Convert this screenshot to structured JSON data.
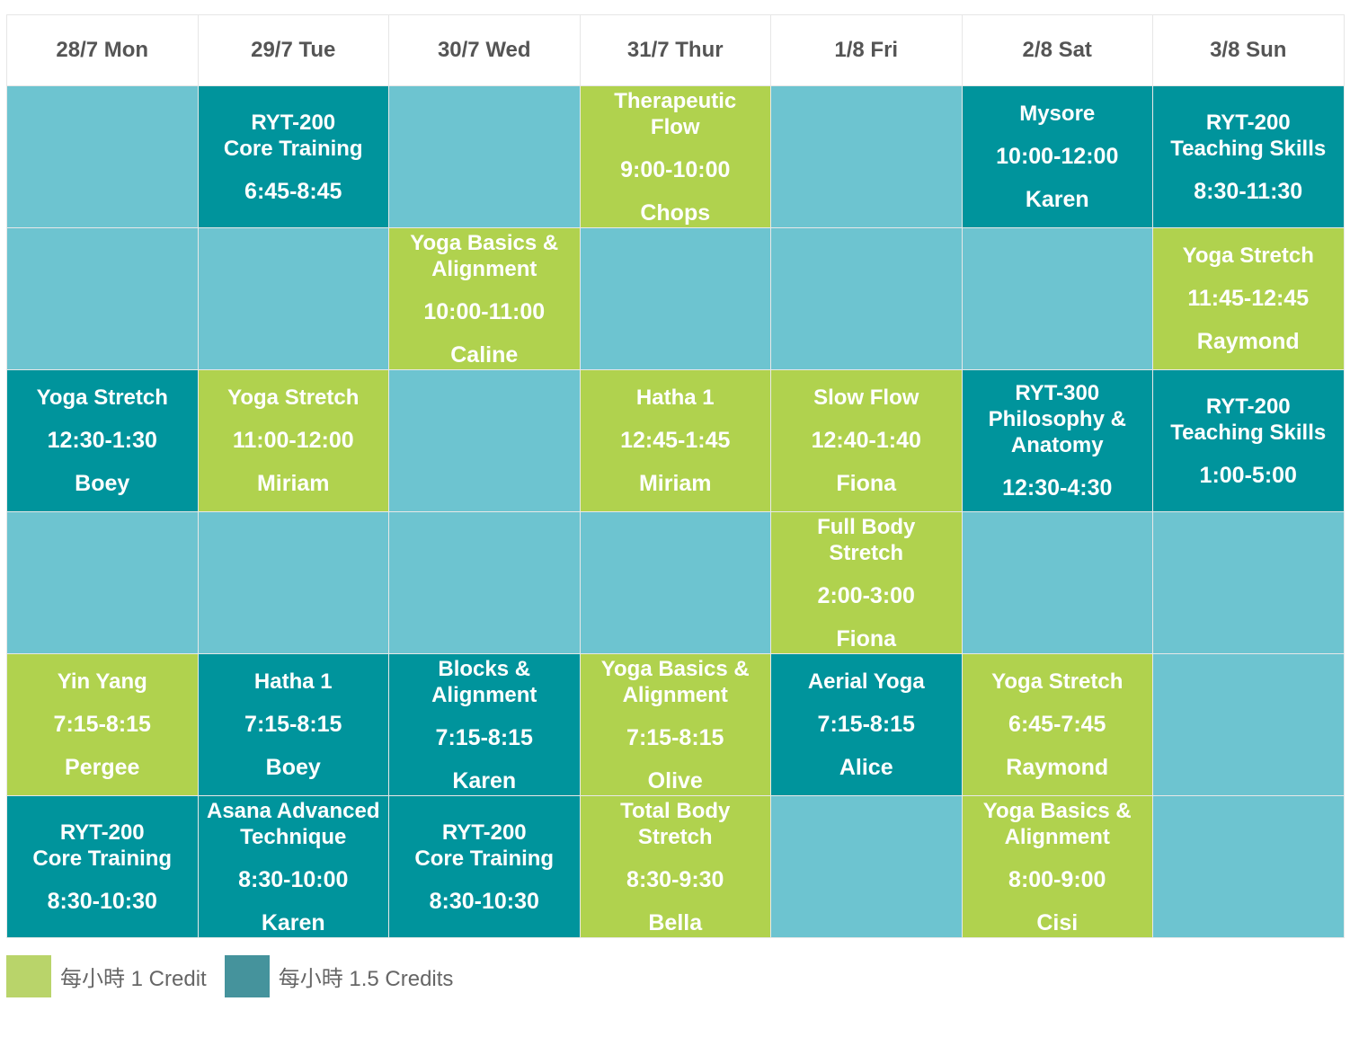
{
  "colors": {
    "empty": "#6dc4d0",
    "credit_1": "#b0d24e",
    "credit_1_5": "#00949c",
    "legend_1": "#b9d46a",
    "legend_1_5": "#45939c"
  },
  "days": [
    "28/7 Mon",
    "29/7 Tue",
    "30/7 Wed",
    "31/7 Thur",
    "1/8 Fri",
    "2/8 Sat",
    "3/8 Sun"
  ],
  "rows": [
    [
      null,
      {
        "type": "c15",
        "title": [
          "RYT-200",
          "Core Training"
        ],
        "time": "6:45-8:45",
        "teacher": ""
      },
      null,
      {
        "type": "c1",
        "title": [
          "Therapeutic",
          "Flow"
        ],
        "time": "9:00-10:00",
        "teacher": "Chops"
      },
      null,
      {
        "type": "c15",
        "title": [
          "Mysore"
        ],
        "time": "10:00-12:00",
        "teacher": "Karen"
      },
      {
        "type": "c15",
        "title": [
          "RYT-200",
          "Teaching Skills"
        ],
        "time": "8:30-11:30",
        "teacher": ""
      }
    ],
    [
      null,
      null,
      {
        "type": "c1",
        "title": [
          "Yoga Basics &",
          "Alignment"
        ],
        "time": "10:00-11:00",
        "teacher": "Caline"
      },
      null,
      null,
      null,
      {
        "type": "c1",
        "title": [
          "Yoga Stretch"
        ],
        "time": "11:45-12:45",
        "teacher": "Raymond"
      }
    ],
    [
      {
        "type": "c15",
        "title": [
          "Yoga Stretch"
        ],
        "time": "12:30-1:30",
        "teacher": "Boey"
      },
      {
        "type": "c1",
        "title": [
          "Yoga Stretch"
        ],
        "time": "11:00-12:00",
        "teacher": "Miriam"
      },
      null,
      {
        "type": "c1",
        "title": [
          "Hatha 1"
        ],
        "time": "12:45-1:45",
        "teacher": "Miriam"
      },
      {
        "type": "c1",
        "title": [
          "Slow Flow"
        ],
        "time": "12:40-1:40",
        "teacher": "Fiona"
      },
      {
        "type": "c15",
        "title": [
          "RYT-300",
          "Philosophy &",
          "Anatomy"
        ],
        "time": "12:30-4:30",
        "teacher": ""
      },
      {
        "type": "c15",
        "title": [
          "RYT-200",
          "Teaching Skills"
        ],
        "time": "1:00-5:00",
        "teacher": ""
      }
    ],
    [
      null,
      null,
      null,
      null,
      {
        "type": "c1",
        "title": [
          "Full Body",
          "Stretch"
        ],
        "time": "2:00-3:00",
        "teacher": "Fiona"
      },
      null,
      null
    ],
    [
      {
        "type": "c1",
        "title": [
          "Yin Yang"
        ],
        "time": "7:15-8:15",
        "teacher": "Pergee"
      },
      {
        "type": "c15",
        "title": [
          "Hatha 1"
        ],
        "time": "7:15-8:15",
        "teacher": "Boey"
      },
      {
        "type": "c15",
        "title": [
          "Blocks &",
          "Alignment"
        ],
        "time": "7:15-8:15",
        "teacher": "Karen"
      },
      {
        "type": "c1",
        "title": [
          "Yoga Basics &",
          "Alignment"
        ],
        "time": "7:15-8:15",
        "teacher": "Olive"
      },
      {
        "type": "c15",
        "title": [
          "Aerial Yoga"
        ],
        "time": "7:15-8:15",
        "teacher": "Alice"
      },
      {
        "type": "c1",
        "title": [
          "Yoga Stretch"
        ],
        "time": "6:45-7:45",
        "teacher": "Raymond"
      },
      null
    ],
    [
      {
        "type": "c15",
        "title": [
          "RYT-200",
          "Core Training"
        ],
        "time": "8:30-10:30",
        "teacher": ""
      },
      {
        "type": "c15",
        "title": [
          "Asana Advanced",
          "Technique"
        ],
        "time": "8:30-10:00",
        "teacher": "Karen"
      },
      {
        "type": "c15",
        "title": [
          "RYT-200",
          "Core Training"
        ],
        "time": "8:30-10:30",
        "teacher": ""
      },
      {
        "type": "c1",
        "title": [
          "Total Body",
          "Stretch"
        ],
        "time": "8:30-9:30",
        "teacher": "Bella"
      },
      null,
      {
        "type": "c1",
        "title": [
          "Yoga Basics &",
          "Alignment"
        ],
        "time": "8:00-9:00",
        "teacher": "Cisi"
      },
      null
    ]
  ],
  "legend": [
    {
      "label": "每小時 1 Credit",
      "color": "#b9d46a"
    },
    {
      "label": "每小時 1.5 Credits",
      "color": "#45939c"
    }
  ]
}
